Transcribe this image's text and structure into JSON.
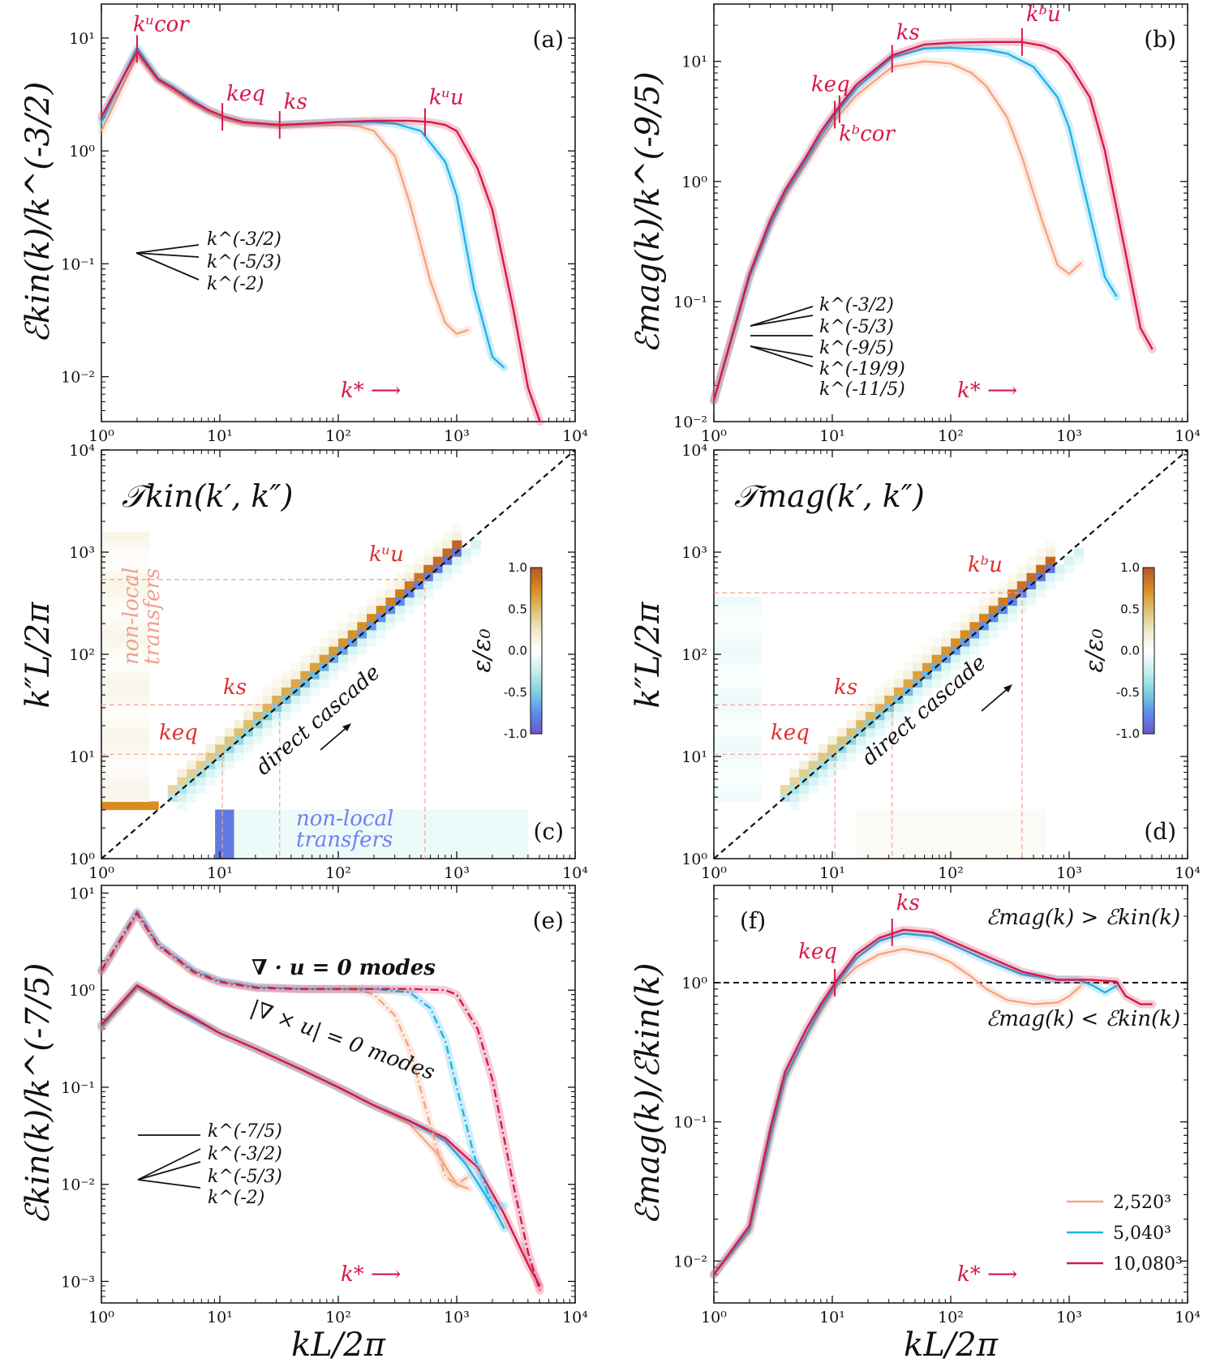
{
  "colors": {
    "res_2520": "#f4a582",
    "res_5040": "#1fb3ea",
    "res_10080": "#d6194a",
    "annot": "#d6194a",
    "red_label": "#e03030",
    "nonlocal_red": "#f0a090",
    "nonlocal_blue": "#7080f0",
    "cmap": [
      "#6a5acd",
      "#5b8ff0",
      "#7fd3e0",
      "#c8eeee",
      "#ffffff",
      "#efe8c8",
      "#dcc070",
      "#d98c20",
      "#b85a28"
    ]
  },
  "x_axis_label": "kL/2π",
  "colorbar": {
    "label": "ε/ε₀",
    "ticks": [
      "1.0",
      "0.5",
      "0.0",
      "-0.5",
      "-1.0"
    ]
  },
  "chart_data": [
    {
      "id": "a",
      "type": "line",
      "panel_label": "(a)",
      "ylabel": "ℰkin(k)/k^(-3/2)",
      "xlim": [
        1,
        10000
      ],
      "ylim": [
        0.004,
        20
      ],
      "xscale": "log",
      "yscale": "log",
      "x_ticks": [
        "10⁰",
        "10¹",
        "10²",
        "10³",
        "10⁴"
      ],
      "y_ticks": [
        "10⁻²",
        "10⁻¹",
        "10⁰",
        "10¹"
      ],
      "series": [
        {
          "name": "2,520³",
          "x": [
            1,
            2,
            3,
            4,
            6,
            8,
            11,
            16,
            32,
            60,
            100,
            150,
            200,
            300,
            400,
            600,
            800,
            1000,
            1260
          ],
          "y": [
            1.5,
            7.0,
            4.2,
            3.4,
            2.6,
            2.2,
            1.9,
            1.75,
            1.65,
            1.7,
            1.7,
            1.65,
            1.5,
            0.9,
            0.35,
            0.07,
            0.03,
            0.024,
            0.026
          ]
        },
        {
          "name": "5,040³",
          "x": [
            1,
            2,
            3,
            4,
            6,
            8,
            11,
            16,
            32,
            60,
            100,
            200,
            300,
            500,
            800,
            1000,
            1400,
            2000,
            2520
          ],
          "y": [
            1.8,
            8.2,
            4.4,
            3.7,
            2.8,
            2.3,
            2.0,
            1.8,
            1.7,
            1.75,
            1.8,
            1.8,
            1.75,
            1.5,
            0.8,
            0.4,
            0.06,
            0.015,
            0.012
          ]
        },
        {
          "name": "10,080³",
          "x": [
            1,
            2,
            3,
            4,
            6,
            8,
            11,
            16,
            32,
            60,
            100,
            200,
            400,
            600,
            800,
            1000,
            1500,
            2000,
            3000,
            4000,
            5040
          ],
          "y": [
            2.0,
            7.6,
            4.3,
            3.6,
            2.7,
            2.3,
            2.0,
            1.8,
            1.7,
            1.75,
            1.8,
            1.85,
            1.85,
            1.8,
            1.7,
            1.5,
            0.7,
            0.3,
            0.04,
            0.008,
            0.004
          ]
        }
      ],
      "markers": [
        {
          "label": "kᵘcor",
          "x": 2,
          "y": 8.0
        },
        {
          "label": "keq",
          "x": 10.5,
          "y": 2.0
        },
        {
          "label": "ks",
          "x": 32,
          "y": 1.7
        },
        {
          "label": "kᵘu",
          "x": 540,
          "y": 1.8
        }
      ],
      "slope_labels": [
        "k^(-3/2)",
        "k^(-5/3)",
        "k^(-2)"
      ],
      "kstar_label": "k* ⟶"
    },
    {
      "id": "b",
      "type": "line",
      "panel_label": "(b)",
      "ylabel": "ℰmag(k)/k^(-9/5)",
      "xlim": [
        1,
        10000
      ],
      "ylim": [
        0.01,
        30
      ],
      "xscale": "log",
      "yscale": "log",
      "x_ticks": [
        "10⁰",
        "10¹",
        "10²",
        "10³",
        "10⁴"
      ],
      "y_ticks": [
        "10⁻²",
        "10⁻¹",
        "10⁰",
        "10¹"
      ],
      "series": [
        {
          "name": "2,520³",
          "x": [
            1,
            2,
            3,
            4,
            6,
            8,
            11,
            16,
            32,
            60,
            100,
            150,
            200,
            300,
            400,
            600,
            800,
            1000,
            1260
          ],
          "y": [
            0.015,
            0.16,
            0.42,
            0.75,
            1.4,
            2.2,
            3.4,
            5.2,
            9.0,
            10.0,
            9.6,
            8.0,
            6.2,
            3.4,
            1.6,
            0.45,
            0.2,
            0.17,
            0.21
          ]
        },
        {
          "name": "5,040³",
          "x": [
            1,
            2,
            3,
            4,
            6,
            8,
            11,
            16,
            32,
            60,
            100,
            200,
            300,
            500,
            800,
            1000,
            1400,
            2000,
            2520
          ],
          "y": [
            0.015,
            0.16,
            0.44,
            0.8,
            1.5,
            2.4,
            3.8,
            6.0,
            10.8,
            12.8,
            13.0,
            12.5,
            11.6,
            9.0,
            5.0,
            2.8,
            0.7,
            0.16,
            0.11
          ]
        },
        {
          "name": "10,080³",
          "x": [
            1,
            2,
            3,
            4,
            6,
            8,
            11,
            16,
            32,
            60,
            100,
            200,
            400,
            600,
            800,
            1000,
            1500,
            2000,
            3000,
            4000,
            5040
          ],
          "y": [
            0.015,
            0.17,
            0.48,
            0.85,
            1.6,
            2.6,
            4.0,
            6.4,
            11.2,
            13.8,
            14.3,
            14.5,
            14.5,
            13.5,
            12.0,
            9.5,
            5.0,
            1.8,
            0.25,
            0.06,
            0.04
          ]
        }
      ],
      "markers": [
        {
          "label": "keq",
          "x": 11.5,
          "y": 4.0
        },
        {
          "label": "kᵇcor",
          "x": 10.5,
          "y": 3.6
        },
        {
          "label": "ks",
          "x": 32,
          "y": 10.5
        },
        {
          "label": "kᵇu",
          "x": 400,
          "y": 14.5
        }
      ],
      "slope_labels": [
        "k^(-3/2)",
        "k^(-5/3)",
        "k^(-9/5)",
        "k^(-19/9)",
        "k^(-11/5)"
      ],
      "kstar_label": "k* ⟶"
    },
    {
      "id": "c",
      "type": "heatmap",
      "panel_label": "(c)",
      "title": "𝒯kin(k′, k″)",
      "ylabel": "k″L/2π",
      "xlim": [
        1,
        10000
      ],
      "ylim": [
        1,
        10000
      ],
      "x_ticks": [
        "10⁰",
        "10¹",
        "10²",
        "10³",
        "10⁴"
      ],
      "y_ticks": [
        "10⁰",
        "10¹",
        "10²",
        "10³",
        "10⁴"
      ],
      "k_u": 540,
      "markers": [
        {
          "label": "kᵘu"
        },
        {
          "label": "ks"
        },
        {
          "label": "keq"
        }
      ],
      "text": {
        "cascade": "direct cascade",
        "nonlocal_left_1": "non-local",
        "nonlocal_left_2": "transfers",
        "nonlocal_bottom_1": "non-local",
        "nonlocal_bottom_2": "transfers"
      }
    },
    {
      "id": "d",
      "type": "heatmap",
      "panel_label": "(d)",
      "title": "𝒯mag(k′, k″)",
      "ylabel": "k″L/2π",
      "xlim": [
        1,
        10000
      ],
      "ylim": [
        1,
        10000
      ],
      "x_ticks": [
        "10⁰",
        "10¹",
        "10²",
        "10³",
        "10⁴"
      ],
      "y_ticks": [
        "10⁰",
        "10¹",
        "10²",
        "10³",
        "10⁴"
      ],
      "k_u": 400,
      "markers": [
        {
          "label": "kᵇu"
        },
        {
          "label": "ks"
        },
        {
          "label": "keq"
        }
      ],
      "text": {
        "cascade": "direct cascade"
      }
    },
    {
      "id": "e",
      "type": "line",
      "panel_label": "(e)",
      "ylabel": "ℰkin(k)/k^(-7/5)",
      "xlim": [
        1,
        10000
      ],
      "ylim": [
        0.0006,
        12
      ],
      "xscale": "log",
      "yscale": "log",
      "x_ticks": [
        "10⁰",
        "10¹",
        "10²",
        "10³",
        "10⁴"
      ],
      "y_ticks": [
        "10⁻³",
        "10⁻²",
        "10⁻¹",
        "10⁰",
        "10¹"
      ],
      "xlabel": "kL/2π",
      "series": [
        {
          "name": "2,520³",
          "x": [
            1,
            2,
            3,
            4,
            6,
            10,
            20,
            50,
            100,
            200,
            400,
            700,
            1000,
            1260
          ],
          "y": [
            0.4,
            1.05,
            0.8,
            0.65,
            0.5,
            0.36,
            0.25,
            0.15,
            0.1,
            0.065,
            0.042,
            0.02,
            0.01,
            0.009
          ]
        },
        {
          "name": "5,040³",
          "x": [
            1,
            2,
            3,
            4,
            6,
            10,
            20,
            50,
            100,
            200,
            400,
            800,
            1200,
            2000,
            2520
          ],
          "y": [
            0.42,
            1.1,
            0.82,
            0.66,
            0.5,
            0.36,
            0.25,
            0.15,
            0.1,
            0.065,
            0.045,
            0.028,
            0.016,
            0.006,
            0.0035
          ]
        },
        {
          "name": "10,080³",
          "x": [
            1,
            2,
            3,
            4,
            6,
            10,
            20,
            50,
            100,
            200,
            400,
            800,
            1500,
            2500,
            4000,
            5040
          ],
          "y": [
            0.44,
            1.12,
            0.84,
            0.67,
            0.52,
            0.36,
            0.25,
            0.15,
            0.1,
            0.065,
            0.045,
            0.03,
            0.015,
            0.005,
            0.0015,
            0.0009
          ]
        }
      ],
      "div_series": [
        {
          "name": "2,520³",
          "x": [
            1,
            2,
            3,
            4,
            6,
            10,
            20,
            50,
            100,
            150,
            200,
            300,
            400,
            600,
            800,
            1000,
            1260
          ],
          "y": [
            1.5,
            6.0,
            2.9,
            2.2,
            1.5,
            1.2,
            1.05,
            1.02,
            1.02,
            1.0,
            0.9,
            0.55,
            0.25,
            0.04,
            0.012,
            0.01,
            0.012
          ]
        },
        {
          "name": "5,040³",
          "x": [
            1,
            2,
            3,
            4,
            6,
            10,
            20,
            50,
            100,
            200,
            400,
            600,
            800,
            1000,
            1400,
            2000,
            2520
          ],
          "y": [
            1.6,
            6.5,
            3.0,
            2.3,
            1.6,
            1.25,
            1.08,
            1.03,
            1.03,
            1.03,
            0.95,
            0.65,
            0.3,
            0.1,
            0.02,
            0.006,
            0.006
          ]
        },
        {
          "name": "10,080³",
          "x": [
            1,
            2,
            3,
            4,
            6,
            10,
            20,
            50,
            100,
            200,
            400,
            800,
            1000,
            1500,
            2000,
            3000,
            4000,
            5040
          ],
          "y": [
            1.6,
            6.2,
            2.9,
            2.25,
            1.55,
            1.22,
            1.06,
            1.03,
            1.03,
            1.03,
            1.03,
            1.0,
            0.9,
            0.4,
            0.12,
            0.01,
            0.002,
            0.0008
          ]
        }
      ],
      "annotations": [
        "∇ · u = 0 modes",
        "|∇ × u| = 0 modes"
      ],
      "slope_labels": [
        "k^(-7/5)",
        "k^(-3/2)",
        "k^(-5/3)",
        "k^(-2)"
      ],
      "kstar_label": "k* ⟶"
    },
    {
      "id": "f",
      "type": "line",
      "panel_label": "(f)",
      "ylabel": "ℰmag(k)/ℰkin(k)",
      "xlim": [
        1,
        10000
      ],
      "ylim": [
        0.005,
        5
      ],
      "xscale": "log",
      "yscale": "log",
      "x_ticks": [
        "10⁰",
        "10¹",
        "10²",
        "10³",
        "10⁴"
      ],
      "y_ticks": [
        "10⁻²",
        "10⁻¹",
        "10⁰"
      ],
      "xlabel": "kL/2π",
      "series": [
        {
          "name": "2,520³",
          "x": [
            1,
            2,
            3,
            4,
            6,
            8,
            11,
            16,
            25,
            40,
            70,
            100,
            150,
            200,
            300,
            500,
            800,
            1000,
            1260
          ],
          "y": [
            0.008,
            0.016,
            0.075,
            0.2,
            0.4,
            0.62,
            0.95,
            1.3,
            1.6,
            1.75,
            1.6,
            1.4,
            1.1,
            0.9,
            0.75,
            0.7,
            0.72,
            0.8,
            0.95
          ]
        },
        {
          "name": "5,040³",
          "x": [
            1,
            2,
            3,
            4,
            6,
            8,
            11,
            16,
            25,
            40,
            70,
            100,
            200,
            400,
            800,
            1200,
            1600,
            2000,
            2520
          ],
          "y": [
            0.008,
            0.017,
            0.08,
            0.21,
            0.42,
            0.66,
            1.0,
            1.5,
            2.0,
            2.25,
            2.15,
            1.9,
            1.45,
            1.15,
            1.05,
            1.05,
            0.95,
            0.85,
            0.95
          ]
        },
        {
          "name": "10,080³",
          "x": [
            1,
            2,
            3,
            4,
            6,
            8,
            11,
            16,
            25,
            40,
            70,
            100,
            200,
            400,
            800,
            1500,
            2500,
            3000,
            4000,
            5040
          ],
          "y": [
            0.008,
            0.018,
            0.09,
            0.23,
            0.46,
            0.7,
            1.05,
            1.6,
            2.1,
            2.4,
            2.3,
            2.0,
            1.55,
            1.2,
            1.05,
            1.05,
            1.02,
            0.8,
            0.7,
            0.7
          ]
        }
      ],
      "ref_line": 1.0,
      "markers": [
        {
          "label": "keq",
          "x": 10.5,
          "y": 1.0
        },
        {
          "label": "ks",
          "x": 32,
          "y": 2.3
        }
      ],
      "annotations": [
        "ℰmag(k) > ℰkin(k)",
        "ℰmag(k) < ℰkin(k)"
      ],
      "legend": [
        "2,520³",
        "5,040³",
        "10,080³"
      ],
      "kstar_label": "k* ⟶"
    }
  ]
}
